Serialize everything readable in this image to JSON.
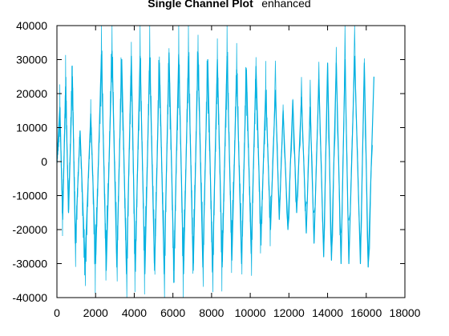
{
  "chart_data": {
    "type": "line",
    "title_main": "Single Channel Plot",
    "title_suffix": "enhanced",
    "xlim": [
      0,
      18000
    ],
    "ylim": [
      -40000,
      40000
    ],
    "x_ticks": [
      0,
      2000,
      4000,
      6000,
      8000,
      10000,
      12000,
      14000,
      16000,
      18000
    ],
    "y_ticks": [
      40000,
      30000,
      20000,
      10000,
      0,
      -10000,
      -20000,
      -30000,
      -40000
    ],
    "x_tick_labels": [
      "0",
      "2000",
      "4000",
      "6000",
      "8000",
      "10000",
      "12000",
      "14000",
      "16000",
      "18000"
    ],
    "y_tick_labels": [
      "40000",
      "30000",
      "20000",
      "10000",
      "0",
      "-10000",
      "-20000",
      "-30000",
      "-40000"
    ],
    "grid": false,
    "series": [
      {
        "color": "#00b0e0",
        "x": [
          0,
          150,
          300,
          450,
          600,
          800,
          950,
          1200,
          1450,
          1750,
          2000,
          2300,
          2550,
          2850,
          3100,
          3350,
          3600,
          3850,
          4050,
          4300,
          4550,
          4800,
          5050,
          5300,
          5550,
          5800,
          6050,
          6300,
          6550,
          6800,
          7050,
          7300,
          7550,
          7800,
          8050,
          8300,
          8550,
          8800,
          9050,
          9300,
          9550,
          9800,
          10050,
          10300,
          10550,
          10800,
          11050,
          11300,
          11500,
          11700,
          11950,
          12200,
          12400,
          12650,
          12900,
          13100,
          13300,
          13550,
          13800,
          14000,
          14200,
          14450,
          14700,
          14900,
          15100,
          15400,
          15700,
          15900,
          16100,
          16400
        ],
        "y": [
          0,
          16000,
          -17000,
          22000,
          -15000,
          25000,
          -24000,
          9000,
          -30000,
          14000,
          -30000,
          31500,
          -32000,
          32500,
          -31000,
          30000,
          -33000,
          31000,
          -32000,
          31000,
          -33000,
          30500,
          -32000,
          29000,
          -33000,
          32000,
          -32000,
          31500,
          -33000,
          31000,
          -32000,
          32000,
          -31000,
          30000,
          -32000,
          30000,
          -31000,
          31000,
          -29000,
          27000,
          -30000,
          27000,
          -27000,
          28000,
          -23000,
          21000,
          -20000,
          21000,
          -17000,
          15000,
          -20000,
          18000,
          -15000,
          19000,
          -21000,
          16000,
          -24000,
          24000,
          -28000,
          29000,
          -29000,
          29000,
          -30000,
          30000,
          -30000,
          31000,
          -30000,
          29000,
          -31000,
          25000
        ]
      }
    ]
  }
}
